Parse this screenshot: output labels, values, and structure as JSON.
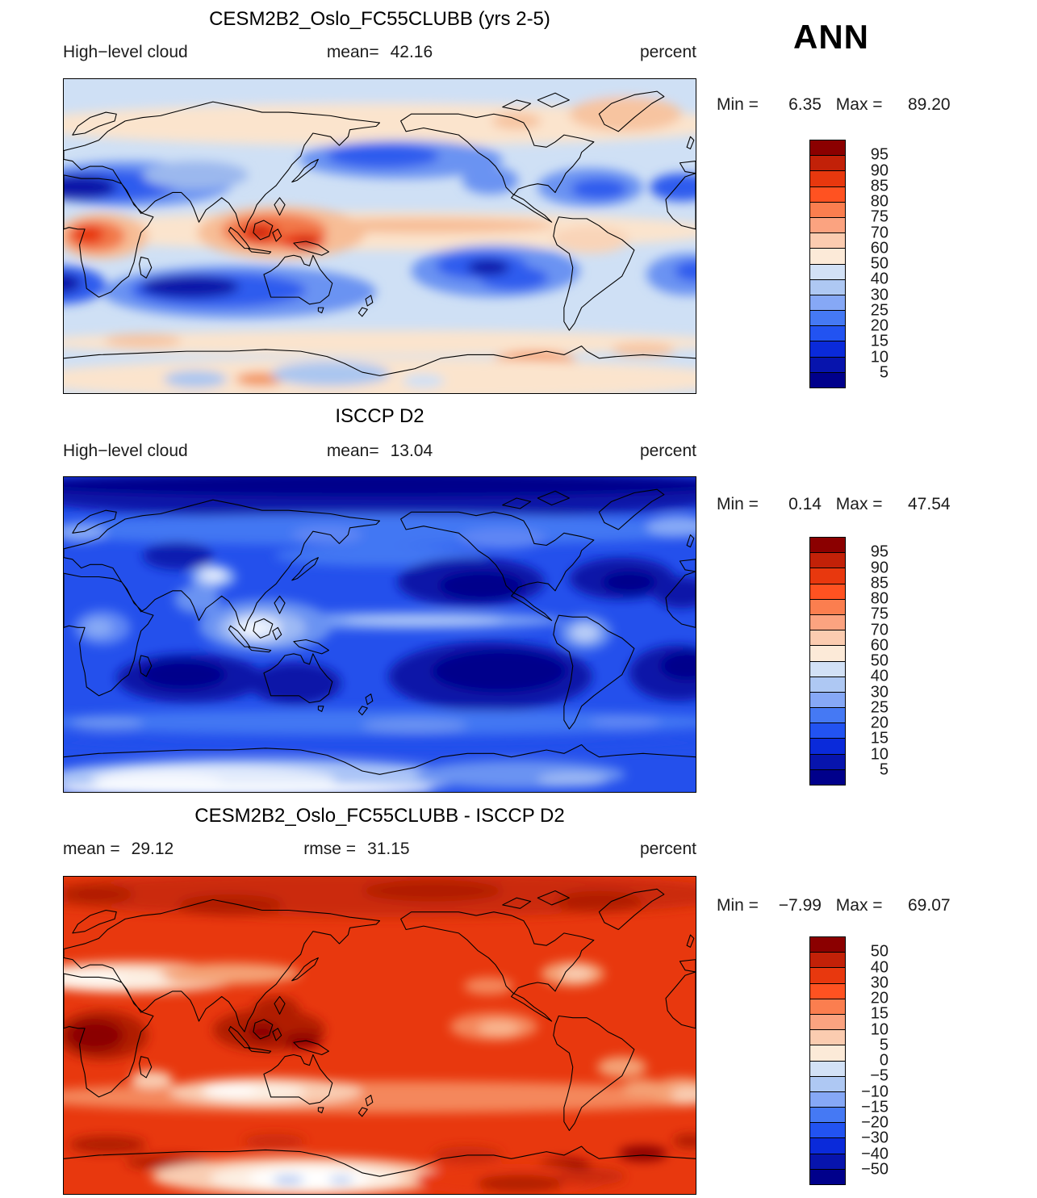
{
  "figure": {
    "season_label": "ANN",
    "variable": "High-level cloud",
    "units": "percent"
  },
  "panels": [
    {
      "title": "CESM2B2_Oslo_FC55CLUBB (yrs 2-5)",
      "var_label": "High−level cloud",
      "mean_label": "mean=",
      "mean_value": "42.16",
      "units": "percent",
      "min_label": "Min =",
      "min_value": "6.35",
      "max_label": "Max =",
      "max_value": "89.20"
    },
    {
      "title": "ISCCP D2",
      "var_label": "High−level cloud",
      "mean_label": "mean=",
      "mean_value": "13.04",
      "units": "percent",
      "min_label": "Min =",
      "min_value": "0.14",
      "max_label": "Max =",
      "max_value": "47.54"
    },
    {
      "title": "CESM2B2_Oslo_FC55CLUBB - ISCCP D2",
      "mean_label": "mean =",
      "mean_value": "29.12",
      "rmse_label": "rmse =",
      "rmse_value": "31.15",
      "units": "percent",
      "min_label": "Min =",
      "min_value": "−7.99",
      "max_label": "Max =",
      "max_value": "69.07"
    }
  ],
  "chart_data": [
    {
      "type": "heatmap",
      "subtype": "filled_contour_world_map",
      "panel": "model",
      "title": "CESM2B2_Oslo_FC55CLUBB (yrs 2-5)",
      "variable": "High-level cloud",
      "season": "ANN",
      "units": "percent",
      "stats": {
        "mean": 42.16,
        "min": 6.35,
        "max": 89.2
      },
      "projection": "equirectangular, longitude 0E-360E (Pacific-centered), latitude 90N-90S",
      "contour_levels": [
        5,
        10,
        15,
        20,
        25,
        30,
        40,
        50,
        60,
        70,
        75,
        80,
        85,
        90,
        95
      ],
      "colorbar_position": "right",
      "colorbar_tick_labels": [
        "95",
        "90",
        "85",
        "80",
        "75",
        "70",
        "60",
        "50",
        "40",
        "30",
        "25",
        "20",
        "15",
        "10",
        "5"
      ],
      "colorbar_colors_top_to_bottom": [
        "#8b0000",
        "#c22108",
        "#e8380e",
        "#ff5221",
        "#fb7e4f",
        "#fba380",
        "#fbccb0",
        "#fcead8",
        "#d2e1f6",
        "#aec8f3",
        "#86a8f6",
        "#4579f4",
        "#2253f1",
        "#0a2ada",
        "#0714ad",
        "#00008b"
      ],
      "notable_features": [
        "maxima above 80% over equatorial Africa and the Maritime Continent (Indonesia/New Guinea)",
        "minima below 10-15% over the Sahara/Middle East subtropical band and the southern subtropical oceans (south Indian Ocean, SE Pacific, S Atlantic)",
        "broad 40-50% light-blue background over most mid-latitude oceans",
        "50-60% cream band along the ITCZ/equator and over high northern latitudes and the Antarctic interior"
      ]
    },
    {
      "type": "heatmap",
      "subtype": "filled_contour_world_map",
      "panel": "observations",
      "title": "ISCCP D2",
      "variable": "High-level cloud",
      "season": "ANN",
      "units": "percent",
      "stats": {
        "mean": 13.04,
        "min": 0.14,
        "max": 47.54
      },
      "projection": "equirectangular, longitude 0E-360E (Pacific-centered), latitude 90N-90S",
      "contour_levels": [
        5,
        10,
        15,
        20,
        25,
        30,
        40,
        50,
        60,
        70,
        75,
        80,
        85,
        90,
        95
      ],
      "colorbar_position": "right",
      "colorbar_tick_labels": [
        "95",
        "90",
        "85",
        "80",
        "75",
        "70",
        "60",
        "50",
        "40",
        "30",
        "25",
        "20",
        "15",
        "10",
        "5"
      ],
      "colorbar_colors_top_to_bottom": [
        "#8b0000",
        "#c22108",
        "#e8380e",
        "#ff5221",
        "#fb7e4f",
        "#fba380",
        "#fbccb0",
        "#fcead8",
        "#d2e1f6",
        "#aec8f3",
        "#86a8f6",
        "#4579f4",
        "#2253f1",
        "#0a2ada",
        "#0714ad",
        "#00008b"
      ],
      "notable_features": [
        "values mostly below 25% everywhere (all-blue map)",
        "minima below 5% over the subtropical oceans (SE Pacific, S Atlantic, NE Pacific, N Atlantic) and the Arctic",
        "relative maxima 30-47% over the Maritime Continent, Tibetan Plateau, tropical Africa and tropical South America",
        "light band along the Pacific ITCZ and brighter (25-40%) interior of East Antarctica"
      ]
    },
    {
      "type": "heatmap",
      "subtype": "filled_contour_world_map_difference",
      "panel": "model_minus_observations",
      "title": "CESM2B2_Oslo_FC55CLUBB - ISCCP D2",
      "variable": "High-level cloud difference",
      "season": "ANN",
      "units": "percent",
      "stats": {
        "mean": 29.12,
        "rmse": 31.15,
        "min": -7.99,
        "max": 69.07
      },
      "projection": "equirectangular, longitude 0E-360E (Pacific-centered), latitude 90N-90S",
      "contour_levels": [
        -50,
        -40,
        -30,
        -20,
        -15,
        -10,
        -5,
        0,
        5,
        10,
        15,
        20,
        30,
        40,
        50
      ],
      "colorbar_position": "right",
      "colorbar_tick_labels": [
        "50",
        "40",
        "30",
        "20",
        "15",
        "10",
        "5",
        "0",
        "−5",
        "−10",
        "−15",
        "−20",
        "−30",
        "−40",
        "−50"
      ],
      "colorbar_colors_top_to_bottom": [
        "#8b0000",
        "#c22108",
        "#e8380e",
        "#ff5221",
        "#fb7e4f",
        "#fba380",
        "#fbccb0",
        "#fcead8",
        "#d2e1f6",
        "#aec8f3",
        "#86a8f6",
        "#4579f4",
        "#2253f1",
        "#0a2ada",
        "#0714ad",
        "#00008b"
      ],
      "notable_features": [
        "model exceeds ISCCP nearly everywhere, typically by +20 to +40",
        "largest positive differences above +50 over equatorial Africa, Indonesia/New Guinea and parts of the Antarctic coastal zone",
        "near-zero white bands across North Africa-Middle East (~30N) and the south Indian Ocean-Australia (~30S)",
        "small negative values (-5 to -10, light blue) only over the interior of Antarctica"
      ]
    }
  ]
}
